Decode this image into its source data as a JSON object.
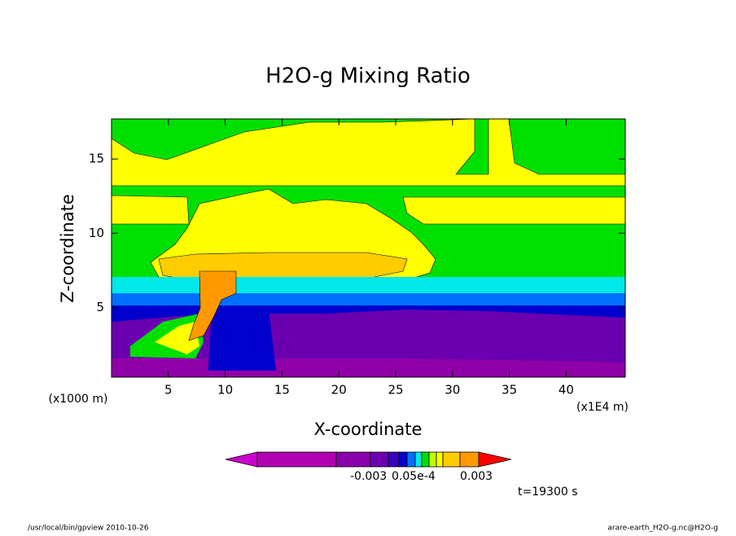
{
  "chart_data": {
    "type": "contour",
    "title": "H2O-g Mixing Ratio",
    "x_label": "X-coordinate",
    "y_label": "Z-coordinate",
    "y_unit": "(x1000 m)",
    "x_unit": "(x1E4 m)",
    "xlim": [
      0,
      45.2
    ],
    "ylim": [
      0.3,
      17.7
    ],
    "xticks": [
      5,
      10,
      15,
      20,
      25,
      30,
      35,
      40
    ],
    "yticks": [
      5,
      10,
      15
    ],
    "colorbar_labels": [
      "-0.003",
      "0.05e-4",
      "0.003"
    ],
    "time_label": "t=19300 s",
    "footer_left": "/usr/local/bin/gpview  2010-10-26",
    "footer_right": "arare-earth_H2O-g.nc@H2O-g"
  }
}
